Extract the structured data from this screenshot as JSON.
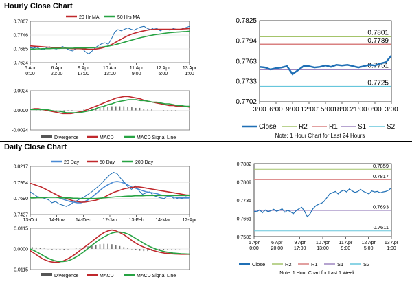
{
  "sections": {
    "hourly_title": "Hourly Close Chart",
    "daily_title": "Daily Close Chart"
  },
  "colors": {
    "close": "#1f6fb5",
    "ma_short": "#c0282c",
    "ma_long": "#27a343",
    "r2": "#a4c46a",
    "r1": "#d98080",
    "s1": "#9d86c0",
    "s2": "#66c6dc",
    "divergence": "#707070",
    "macd": "#c0282c",
    "signal": "#27a343",
    "daily_ma20": "#4a8ad4"
  },
  "chart_data": [
    {
      "id": "hourly_price",
      "type": "line",
      "legend": [
        "20 Hr MA",
        "50 Hrs MA"
      ],
      "x_ticks": [
        "6 Apr\n0:00",
        "6 Apr\n20:00",
        "9 Apr\n17:00",
        "10 Apr\n13:00",
        "11 Apr\n9:00",
        "12 Apr\n5:00",
        "13 Apr\n1:00"
      ],
      "y_ticks": [
        0.7807,
        0.7746,
        0.7685,
        0.7624
      ],
      "ylim": [
        0.7624,
        0.7807
      ],
      "series": [
        {
          "name": "Close",
          "values": [
            0.769,
            0.7688,
            0.7692,
            0.7685,
            0.768,
            0.769,
            0.7694,
            0.7688,
            0.7684,
            0.769,
            0.7695,
            0.7688,
            0.768,
            0.7676,
            0.7685,
            0.769,
            0.7686,
            0.7672,
            0.7662,
            0.7675,
            0.769,
            0.77,
            0.7708,
            0.7712,
            0.7705,
            0.773,
            0.776,
            0.777,
            0.7765,
            0.7772,
            0.7778,
            0.7772,
            0.7768,
            0.7776,
            0.7782,
            0.7785,
            0.7776,
            0.777,
            0.7778,
            0.7775,
            0.7765,
            0.7772,
            0.777,
            0.7768,
            0.7775,
            0.7772,
            0.777,
            0.7776,
            0.778,
            0.7785
          ]
        },
        {
          "name": "20 Hr MA",
          "values": [
            0.7698,
            0.7697,
            0.7696,
            0.7695,
            0.7694,
            0.7693,
            0.7692,
            0.7691,
            0.769,
            0.7689,
            0.7688,
            0.7688,
            0.7687,
            0.7686,
            0.7686,
            0.7686,
            0.7685,
            0.7684,
            0.7683,
            0.7683,
            0.7684,
            0.7686,
            0.7689,
            0.7693,
            0.7698,
            0.7704,
            0.7712,
            0.772,
            0.7728,
            0.7736,
            0.7743,
            0.7749,
            0.7754,
            0.7758,
            0.7762,
            0.7765,
            0.7768,
            0.777,
            0.7771,
            0.7772,
            0.7772,
            0.7772,
            0.7772,
            0.7772,
            0.7772,
            0.7772,
            0.7772,
            0.7773,
            0.7774,
            0.7775
          ]
        },
        {
          "name": "50 Hrs MA",
          "values": [
            0.7684,
            0.7684,
            0.7685,
            0.7685,
            0.7686,
            0.7686,
            0.7686,
            0.7687,
            0.7687,
            0.7687,
            0.7688,
            0.7688,
            0.7688,
            0.7688,
            0.7689,
            0.7689,
            0.7689,
            0.7689,
            0.769,
            0.769,
            0.7691,
            0.7692,
            0.7693,
            0.7695,
            0.7697,
            0.77,
            0.7703,
            0.7707,
            0.7711,
            0.7715,
            0.7719,
            0.7723,
            0.7727,
            0.7731,
            0.7735,
            0.7738,
            0.7741,
            0.7744,
            0.7747,
            0.7749,
            0.7751,
            0.7753,
            0.7755,
            0.7757,
            0.7758,
            0.7759,
            0.776,
            0.7761,
            0.7762,
            0.7763
          ]
        }
      ]
    },
    {
      "id": "hourly_macd",
      "type": "bar",
      "legend": [
        "Divergence",
        "MACD",
        "MACD Signal Line"
      ],
      "y_ticks": [
        0.0024,
        0.0,
        -0.0024
      ],
      "ylim": [
        -0.0024,
        0.0024
      ],
      "series": [
        {
          "name": "Divergence",
          "values": [
            0.0,
            0.0001,
            0.0001,
            0.0,
            -0.0001,
            -0.0001,
            -0.0002,
            -0.0002,
            -0.0002,
            -0.0001,
            -0.0001,
            0.0,
            0.0,
            0.0001,
            0.0001,
            0.0002,
            0.0002,
            0.0003,
            0.0004,
            0.0004,
            0.0005,
            0.0005,
            0.0005,
            0.0005,
            0.0004,
            0.0004,
            0.0003,
            0.0003,
            0.0002,
            0.0001,
            0.0001,
            0.0,
            0.0,
            -0.0001,
            -0.0001,
            -0.0001,
            -0.0001,
            0.0,
            0.0,
            0.0
          ]
        },
        {
          "name": "MACD",
          "values": [
            0.0001,
            0.0002,
            0.0002,
            0.0001,
            0.0,
            -0.0001,
            -0.0002,
            -0.0003,
            -0.0004,
            -0.0004,
            -0.0004,
            -0.0003,
            -0.0002,
            -0.0001,
            0.0001,
            0.0003,
            0.0005,
            0.0007,
            0.0009,
            0.0011,
            0.0013,
            0.0015,
            0.0016,
            0.0017,
            0.0017,
            0.0016,
            0.0015,
            0.0014,
            0.0012,
            0.0011,
            0.001,
            0.0009,
            0.0008,
            0.0007,
            0.0006,
            0.0006,
            0.0005,
            0.0005,
            0.0005,
            0.0004
          ]
        },
        {
          "name": "MACD Signal Line",
          "values": [
            0.0001,
            0.0001,
            0.0001,
            0.0001,
            0.0001,
            0.0,
            -0.0001,
            -0.0001,
            -0.0002,
            -0.0003,
            -0.0003,
            -0.0003,
            -0.0003,
            -0.0002,
            -0.0001,
            0.0,
            0.0002,
            0.0004,
            0.0005,
            0.0007,
            0.0008,
            0.001,
            0.0011,
            0.0012,
            0.0013,
            0.0013,
            0.0013,
            0.0012,
            0.0012,
            0.0011,
            0.001,
            0.001,
            0.0009,
            0.0008,
            0.0008,
            0.0007,
            0.0006,
            0.0006,
            0.0005,
            0.0005
          ]
        }
      ]
    },
    {
      "id": "hourly_levels",
      "type": "line",
      "x_ticks": [
        "3:00",
        "6:00",
        "9:00",
        "12:00",
        "15:00",
        "18:00",
        "21:00",
        "0:00",
        "3:00"
      ],
      "y_ticks": [
        0.7825,
        0.7794,
        0.7763,
        0.7733,
        0.7702
      ],
      "ylim": [
        0.7702,
        0.7825
      ],
      "levels": {
        "R2": 0.7801,
        "R1": 0.7789,
        "S1": 0.7751,
        "S2": 0.7725
      },
      "level_labels": [
        "0.7801",
        "0.7789",
        "0.7751",
        "0.7725"
      ],
      "legend": [
        "Close",
        "R2",
        "R1",
        "S1",
        "S2"
      ],
      "note": "Note: 1 Hour Chart for Last 24 Hours",
      "series": [
        {
          "name": "Close",
          "values": [
            0.7755,
            0.7754,
            0.7751,
            0.7753,
            0.7754,
            0.7756,
            0.7744,
            0.775,
            0.7756,
            0.7756,
            0.7754,
            0.7755,
            0.7757,
            0.7755,
            0.7758,
            0.7757,
            0.7758,
            0.7756,
            0.7754,
            0.7756,
            0.7758,
            0.7757,
            0.776,
            0.7762,
            0.7772
          ]
        }
      ]
    },
    {
      "id": "daily_price",
      "type": "line",
      "legend": [
        "20 Day",
        "50 Day",
        "200 Day"
      ],
      "x_ticks": [
        "13-Oct",
        "14-Nov",
        "14-Dec",
        "12-Jan",
        "13-Feb",
        "14-Mar",
        "12-Apr"
      ],
      "y_ticks": [
        0.8217,
        0.7954,
        0.769,
        0.7427
      ],
      "ylim": [
        0.7427,
        0.8217
      ],
      "series": [
        {
          "name": "Close",
          "values": [
            0.78,
            0.776,
            0.772,
            0.771,
            0.769,
            0.767,
            0.762,
            0.764,
            0.76,
            0.758,
            0.756,
            0.759,
            0.763,
            0.766,
            0.769,
            0.772,
            0.776,
            0.78,
            0.785,
            0.79,
            0.796,
            0.802,
            0.808,
            0.812,
            0.81,
            0.802,
            0.796,
            0.788,
            0.784,
            0.79,
            0.782,
            0.776,
            0.778,
            0.78,
            0.774,
            0.772,
            0.77,
            0.769,
            0.773,
            0.772,
            0.768,
            0.77,
            0.769,
            0.772,
            0.77
          ]
        },
        {
          "name": "20 Day",
          "values": [
            null,
            null,
            null,
            null,
            null,
            null,
            null,
            null,
            0.77,
            0.768,
            0.766,
            0.764,
            0.763,
            0.762,
            0.762,
            0.764,
            0.767,
            0.771,
            0.776,
            0.781,
            0.786,
            0.79,
            0.793,
            0.796,
            0.797,
            0.796,
            0.794,
            0.791,
            0.788,
            0.786,
            0.784,
            0.782,
            0.78,
            0.779,
            0.778,
            0.777,
            0.775,
            0.774,
            0.773,
            0.772,
            0.771,
            0.7705,
            0.77,
            0.77,
            0.77
          ]
        },
        {
          "name": "50 Day",
          "values": [
            0.794,
            0.792,
            0.79,
            0.788,
            0.785,
            0.782,
            0.779,
            0.776,
            0.773,
            0.771,
            0.769,
            0.767,
            0.765,
            0.764,
            0.763,
            0.763,
            0.764,
            0.765,
            0.766,
            0.768,
            0.77,
            0.773,
            0.776,
            0.779,
            0.781,
            0.783,
            0.785,
            0.786,
            0.787,
            0.788,
            0.788,
            0.787,
            0.786,
            0.785,
            0.784,
            0.783,
            0.782,
            0.781,
            0.78,
            0.779,
            0.778,
            0.777,
            0.776,
            0.775,
            0.7745
          ]
        },
        {
          "name": "200 Day",
          "values": [
            0.77,
            0.77,
            0.7705,
            0.7705,
            0.7705,
            0.771,
            0.771,
            0.771,
            0.7705,
            0.77,
            0.77,
            0.77,
            0.7695,
            0.7695,
            0.769,
            0.769,
            0.769,
            0.769,
            0.769,
            0.7695,
            0.77,
            0.7705,
            0.771,
            0.7715,
            0.772,
            0.772,
            0.7725,
            0.773,
            0.773,
            0.7735,
            0.7735,
            0.7735,
            0.774,
            0.774,
            0.774,
            0.774,
            0.774,
            0.774,
            0.774,
            0.774,
            0.774,
            0.774,
            0.774,
            0.774,
            0.774
          ]
        }
      ]
    },
    {
      "id": "daily_macd",
      "type": "bar",
      "legend": [
        "Divergence",
        "MACD",
        "MACD Signal Line"
      ],
      "y_ticks": [
        0.0115,
        0.0,
        -0.0115
      ],
      "ylim": [
        -0.0115,
        0.0115
      ],
      "series": [
        {
          "name": "Divergence",
          "values": [
            0.001,
            0.0008,
            0.0005,
            0.0002,
            -0.0001,
            -0.0003,
            -0.0004,
            -0.0005,
            -0.0004,
            -0.0002,
            0.0,
            0.0003,
            0.0006,
            0.001,
            0.0014,
            0.0018,
            0.0022,
            0.0026,
            0.0028,
            0.0028,
            0.0026,
            0.0022,
            0.0016,
            0.001,
            0.0004,
            -0.0002,
            -0.0006,
            -0.001,
            -0.0012,
            -0.0012,
            -0.001,
            -0.0008,
            -0.0006,
            -0.0004,
            -0.0003,
            -0.0002,
            -0.0002,
            -0.0001,
            0.0,
            0.0
          ]
        },
        {
          "name": "MACD",
          "values": [
            -0.001,
            -0.0025,
            -0.004,
            -0.0055,
            -0.0065,
            -0.0072,
            -0.0075,
            -0.0074,
            -0.0068,
            -0.0058,
            -0.0045,
            -0.003,
            -0.0012,
            0.0005,
            0.0022,
            0.004,
            0.0058,
            0.0075,
            0.009,
            0.01,
            0.0105,
            0.01,
            0.009,
            0.0078,
            0.0062,
            0.0045,
            0.003,
            0.0018,
            0.0008,
            0.0,
            -0.0008,
            -0.0015,
            -0.002,
            -0.0024,
            -0.0026,
            -0.0028,
            -0.0029,
            -0.003,
            -0.003,
            -0.003
          ]
        },
        {
          "name": "MACD Signal Line",
          "values": [
            0.0,
            -0.001,
            -0.0022,
            -0.0035,
            -0.0048,
            -0.0058,
            -0.0066,
            -0.007,
            -0.0071,
            -0.0068,
            -0.006,
            -0.0048,
            -0.0034,
            -0.0018,
            0.0,
            0.0018,
            0.0036,
            0.0052,
            0.0066,
            0.0078,
            0.0088,
            0.0093,
            0.0094,
            0.009,
            0.0082,
            0.007,
            0.0056,
            0.0042,
            0.0028,
            0.0016,
            0.0006,
            -0.0003,
            -0.001,
            -0.0016,
            -0.002,
            -0.0023,
            -0.0025,
            -0.0027,
            -0.0028,
            -0.0029
          ]
        }
      ]
    },
    {
      "id": "weekly_levels",
      "type": "line",
      "x_ticks": [
        "6 Apr\n0:00",
        "6 Apr\n20:00",
        "9 Apr\n17:00",
        "10 Apr\n13:00",
        "11 Apr\n9:00",
        "12 Apr\n5:00",
        "13 Apr\n1:00"
      ],
      "y_ticks": [
        0.7882,
        0.7809,
        0.7735,
        0.7661,
        0.7588
      ],
      "ylim": [
        0.7588,
        0.7882
      ],
      "levels": {
        "R2": 0.7859,
        "R1": 0.7817,
        "S1": 0.7693,
        "S2": 0.7611
      },
      "level_labels": [
        "0.7859",
        "0.7817",
        "0.7693",
        "0.7611"
      ],
      "legend": [
        "Close",
        "R2",
        "R1",
        "S1",
        "S2"
      ],
      "note": "Note: 1 Hour Chart for Last 1 Week",
      "series": [
        {
          "name": "Close",
          "values": [
            0.769,
            0.7688,
            0.7696,
            0.7684,
            0.7695,
            0.7688,
            0.7692,
            0.7698,
            0.769,
            0.7694,
            0.77,
            0.7686,
            0.7694,
            0.7688,
            0.768,
            0.7692,
            0.77,
            0.7706,
            0.769,
            0.7668,
            0.768,
            0.77,
            0.7712,
            0.7718,
            0.7722,
            0.773,
            0.7745,
            0.776,
            0.7765,
            0.777,
            0.776,
            0.777,
            0.7775,
            0.7768,
            0.778,
            0.7772,
            0.7766,
            0.777,
            0.7778,
            0.777,
            0.7765,
            0.776,
            0.7772,
            0.7768,
            0.777,
            0.7764,
            0.7768,
            0.777,
            0.7775,
            0.7785
          ]
        }
      ]
    }
  ]
}
